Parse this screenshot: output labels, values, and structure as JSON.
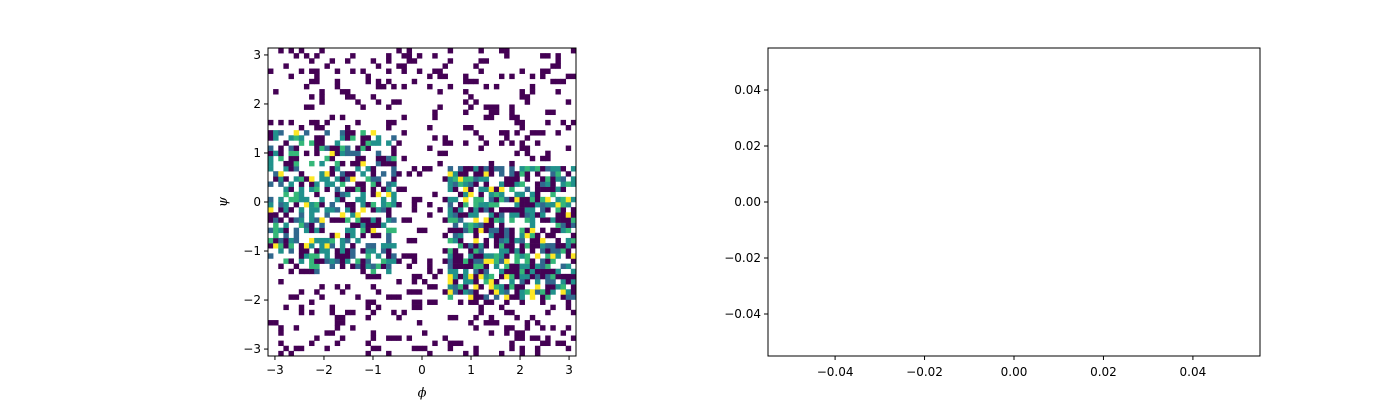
{
  "chart_data": [
    {
      "type": "heatmap",
      "title": "",
      "xlabel": "ϕ",
      "ylabel": "ψ",
      "xlim": [
        -3.1416,
        3.1416
      ],
      "ylim": [
        -3.1416,
        3.1416
      ],
      "bins": 60,
      "colormap": "viridis",
      "empty_bins": "white",
      "grid": false,
      "xticks": [
        -3,
        -2,
        -1,
        0,
        1,
        2,
        3
      ],
      "yticks": [
        -3,
        -2,
        -1,
        0,
        1,
        2,
        3
      ],
      "xtick_labels": [
        "−3",
        "−2",
        "−1",
        "0",
        "1",
        "2",
        "3"
      ],
      "ytick_labels": [
        "−3",
        "−2",
        "−1",
        "0",
        "1",
        "2",
        "3"
      ],
      "density_regions": [
        {
          "phi_range": [
            -3.14,
            -0.5
          ],
          "psi_range": [
            -1.5,
            1.5
          ],
          "level": "moderate"
        },
        {
          "phi_range": [
            0.5,
            3.14
          ],
          "psi_range": [
            -2.0,
            0.7
          ],
          "level": "high"
        },
        {
          "phi_range": [
            -3.14,
            3.14
          ],
          "psi_range": [
            -3.14,
            3.14
          ],
          "level": "sparse"
        }
      ]
    },
    {
      "type": "line",
      "title": "",
      "xlabel": "",
      "ylabel": "",
      "series": [],
      "xlim": [
        -0.055,
        0.055
      ],
      "ylim": [
        -0.055,
        0.055
      ],
      "xticks": [
        -0.04,
        -0.02,
        0.0,
        0.02,
        0.04
      ],
      "yticks": [
        -0.04,
        -0.02,
        0.0,
        0.02,
        0.04
      ],
      "xtick_labels": [
        "−0.04",
        "−0.02",
        "0.00",
        "0.02",
        "0.04"
      ],
      "ytick_labels": [
        "−0.04",
        "−0.02",
        "0.00",
        "0.02",
        "0.04"
      ],
      "grid": false
    }
  ]
}
